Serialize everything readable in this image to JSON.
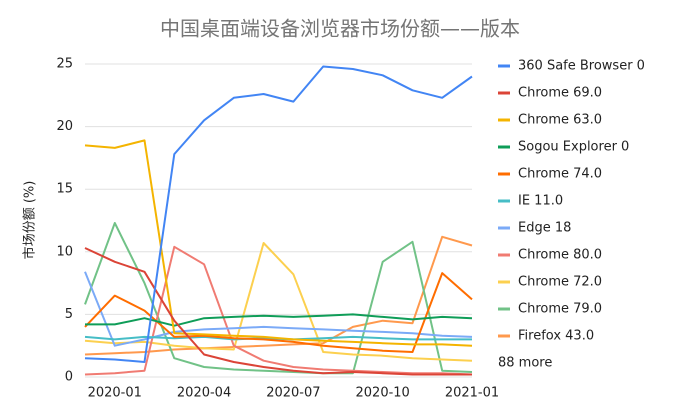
{
  "chart_data": {
    "type": "line",
    "title": "中国桌面端设备浏览器市场份额——版本",
    "y_label": "市场份额 (%)",
    "categories": [
      null,
      "2020-01",
      null,
      null,
      "2020-04",
      null,
      null,
      "2020-07",
      null,
      null,
      "2020-10",
      null,
      null,
      "2021-01"
    ],
    "ylim": [
      0,
      25
    ],
    "yticks": [
      0,
      5,
      10,
      15,
      20,
      25
    ],
    "grid": true,
    "legend_position": "right",
    "legend_more": "88 more",
    "series": [
      {
        "name": "360 Safe Browser 0",
        "color": "#4285f4",
        "values": [
          1.5,
          1.4,
          1.2,
          17.8,
          20.5,
          22.3,
          22.6,
          22.0,
          24.8,
          24.6,
          24.1,
          22.9,
          22.3,
          24.0
        ]
      },
      {
        "name": "Chrome 69.0",
        "color": "#db4437",
        "values": [
          10.3,
          9.2,
          8.4,
          4.5,
          1.8,
          1.2,
          0.8,
          0.5,
          0.3,
          0.4,
          0.3,
          0.2,
          0.2,
          0.2
        ]
      },
      {
        "name": "Chrome 63.0",
        "color": "#f4b400",
        "values": [
          18.5,
          18.3,
          18.9,
          3.5,
          3.4,
          3.3,
          3.2,
          3.0,
          2.9,
          2.8,
          2.7,
          2.6,
          2.6,
          2.5
        ]
      },
      {
        "name": "Sogou Explorer 0",
        "color": "#0f9d58",
        "values": [
          4.2,
          4.2,
          4.7,
          4.1,
          4.7,
          4.8,
          4.9,
          4.8,
          4.9,
          5.0,
          4.8,
          4.6,
          4.8,
          4.7
        ]
      },
      {
        "name": "Chrome 74.0",
        "color": "#ff6d00",
        "values": [
          4.0,
          6.5,
          5.3,
          3.2,
          3.3,
          3.1,
          3.0,
          2.8,
          2.5,
          2.3,
          2.1,
          2.0,
          8.3,
          6.2
        ]
      },
      {
        "name": "IE 11.0",
        "color": "#46bdc6",
        "values": [
          3.2,
          3.0,
          3.2,
          3.1,
          3.2,
          3.0,
          3.1,
          3.0,
          3.1,
          3.2,
          3.1,
          3.0,
          3.0,
          3.0
        ]
      },
      {
        "name": "Edge 18",
        "color": "#7baaf7",
        "values": [
          8.4,
          2.5,
          3.0,
          3.6,
          3.8,
          3.9,
          4.0,
          3.9,
          3.8,
          3.7,
          3.6,
          3.5,
          3.3,
          3.2
        ]
      },
      {
        "name": "Chrome 80.0",
        "color": "#f07b72",
        "values": [
          0.2,
          0.3,
          0.5,
          10.4,
          9.0,
          2.5,
          1.3,
          0.8,
          0.6,
          0.5,
          0.4,
          0.3,
          0.3,
          0.2
        ]
      },
      {
        "name": "Chrome 72.0",
        "color": "#fcd04f",
        "values": [
          2.9,
          2.7,
          2.8,
          2.5,
          2.3,
          2.2,
          10.7,
          8.2,
          2.0,
          1.8,
          1.7,
          1.5,
          1.4,
          1.3
        ]
      },
      {
        "name": "Chrome 79.0",
        "color": "#71c287",
        "values": [
          5.8,
          12.3,
          7.5,
          1.5,
          0.8,
          0.6,
          0.5,
          0.4,
          0.3,
          0.3,
          9.2,
          10.8,
          0.5,
          0.4
        ]
      },
      {
        "name": "Firefox 43.0",
        "color": "#ff994d",
        "values": [
          1.8,
          1.9,
          2.0,
          2.2,
          2.3,
          2.4,
          2.5,
          2.6,
          2.7,
          4.0,
          4.5,
          4.3,
          11.2,
          10.5
        ]
      }
    ]
  }
}
